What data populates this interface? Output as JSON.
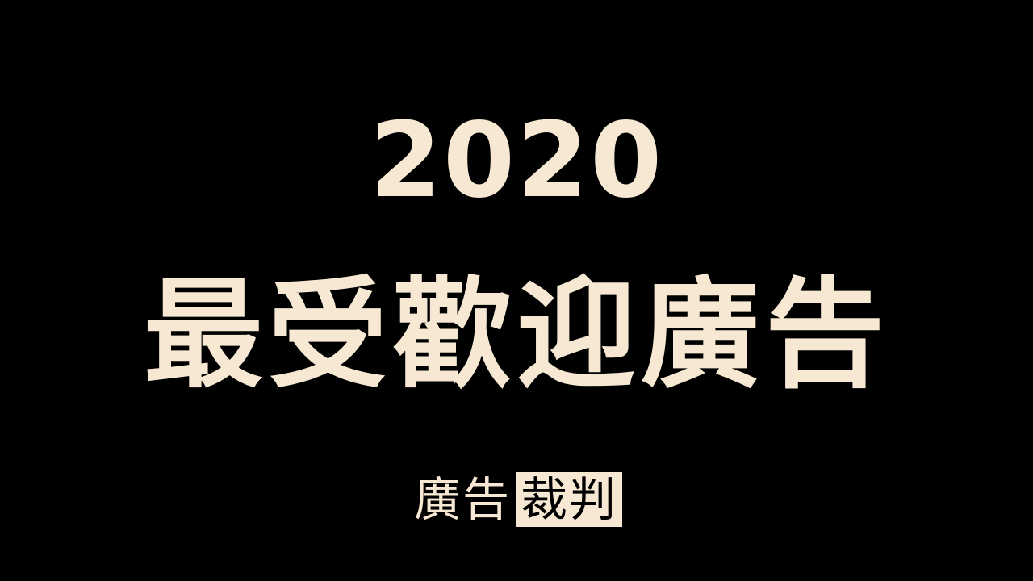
{
  "colors": {
    "background": "#000000",
    "cream": "#F6E8D2",
    "logo_box_text": "#000000"
  },
  "title": {
    "year": "2020",
    "headline": "最受歡迎廣告"
  },
  "logo": {
    "plain_text": "廣告",
    "boxed_text": "裁判"
  }
}
